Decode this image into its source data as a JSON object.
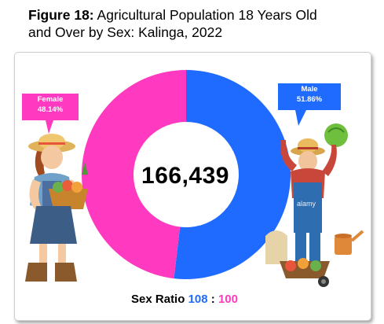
{
  "figure": {
    "label": "Figure 18:",
    "title_line1": "Agricultural Population 18 Years Old",
    "title_line2": "and Over by Sex: Kalinga, 2022"
  },
  "chart_data": {
    "type": "pie",
    "variant": "donut",
    "title": "Agricultural Population 18 Years Old and Over by Sex: Kalinga, 2022",
    "center_label": "166,439",
    "slices": [
      {
        "name": "Male",
        "label": "Male",
        "value_label": "51.86%",
        "value": 51.86,
        "color": "#1f6bff"
      },
      {
        "name": "Female",
        "label": "Female",
        "value_label": "48.14%",
        "value": 48.14,
        "color": "#ff3ac0"
      }
    ]
  },
  "sex_ratio": {
    "label": "Sex Ratio",
    "male": "108",
    "separator": ":",
    "female": "100"
  },
  "watermark": "alamy"
}
